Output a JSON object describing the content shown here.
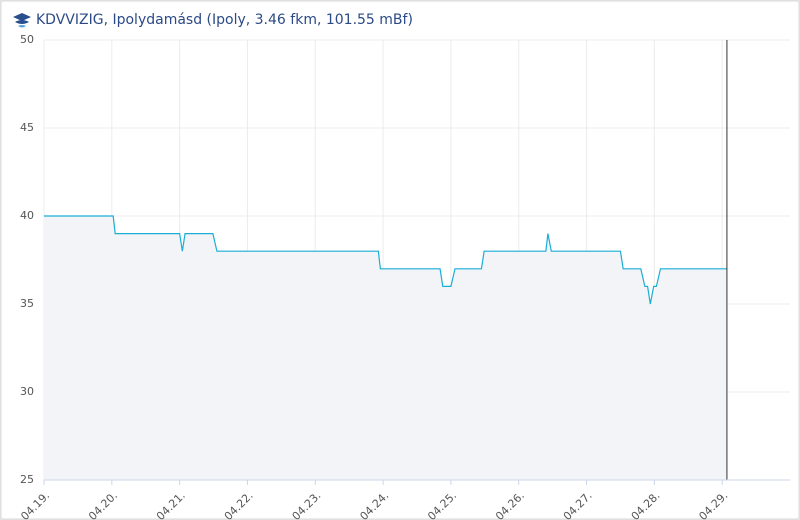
{
  "chart_data": {
    "type": "line",
    "title": "KDVVIZIG, Ipolydamásd (Ipoly, 3.46 fkm, 101.55 mBf)",
    "x": [
      0,
      1.02,
      1.05,
      2.0,
      2.04,
      2.08,
      2.49,
      2.55,
      4.93,
      4.96,
      5.84,
      5.88,
      6.0,
      6.06,
      6.45,
      6.49,
      7.4,
      7.43,
      7.48,
      8.5,
      8.54,
      8.8,
      8.86,
      8.9,
      8.94,
      8.99,
      9.03,
      9.09,
      10.07
    ],
    "series": [
      {
        "color": "#1aaed6",
        "values": [
          40,
          40,
          39,
          39,
          38,
          39,
          39,
          38,
          38,
          37,
          37,
          36,
          36,
          37,
          37,
          38,
          38,
          39,
          38,
          38,
          37,
          37,
          36,
          36,
          35,
          36,
          36,
          37,
          37
        ]
      }
    ],
    "xlim": [
      0,
      11
    ],
    "xticks": [
      {
        "value": 0,
        "label": "04.19."
      },
      {
        "value": 1,
        "label": "04.20."
      },
      {
        "value": 2,
        "label": "04.21."
      },
      {
        "value": 3,
        "label": "04.22."
      },
      {
        "value": 4,
        "label": "04.23."
      },
      {
        "value": 5,
        "label": "04.24."
      },
      {
        "value": 6,
        "label": "04.25."
      },
      {
        "value": 7,
        "label": "04.26."
      },
      {
        "value": 8,
        "label": "04.27."
      },
      {
        "value": 9,
        "label": "04.28."
      },
      {
        "value": 10,
        "label": "04.29."
      }
    ],
    "ylim": [
      25,
      50
    ],
    "yticks": [
      25,
      30,
      35,
      40,
      45,
      50
    ],
    "grid": true,
    "area_color": "#f2f4f8"
  }
}
